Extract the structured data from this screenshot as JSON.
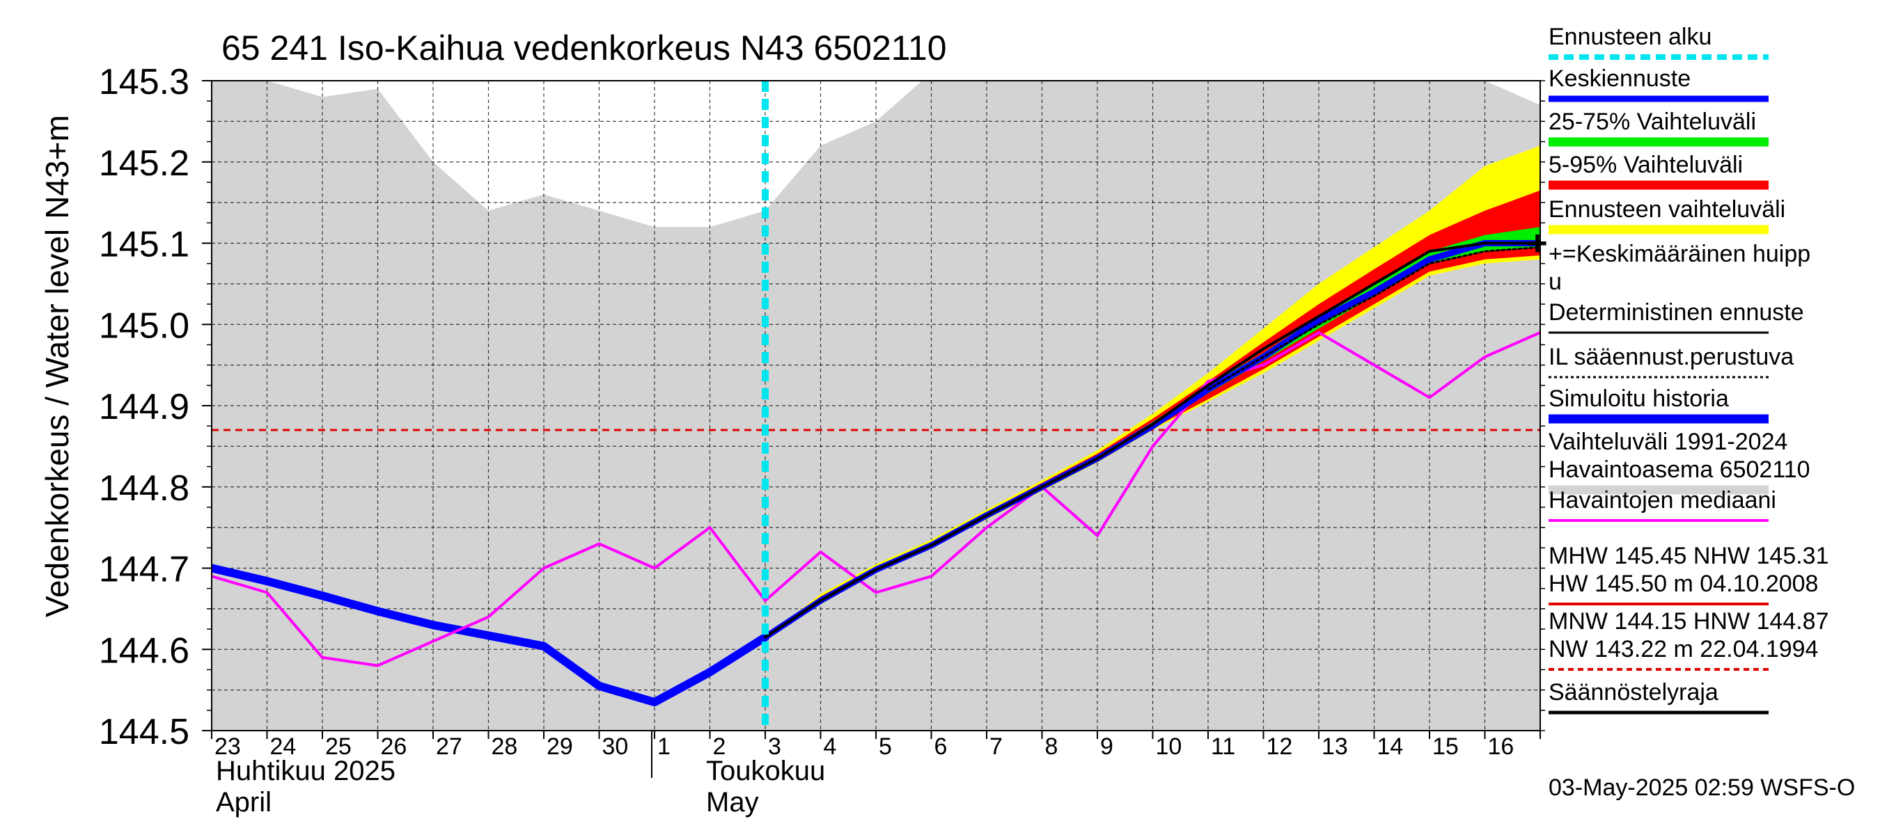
{
  "chart_data": {
    "type": "line",
    "title": "65 241 Iso-Kaihua vedenkorkeus N43 6502110",
    "ylabel": "Vedenkorkeus / Water level   N43+m",
    "ylabel_main": "Vedenkorkeus / Water level",
    "ylabel_unit": "N43+m",
    "ylim": [
      144.5,
      145.3
    ],
    "yticks": [
      "145.3",
      "145.2",
      "145.1",
      "145.0",
      "144.9",
      "144.8",
      "144.7",
      "144.6",
      "144.5"
    ],
    "xlim": [
      "2025-04-23",
      "2025-05-17"
    ],
    "xtick_labels": [
      "23",
      "24",
      "25",
      "26",
      "27",
      "28",
      "29",
      "30",
      "1",
      "2",
      "3",
      "4",
      "5",
      "6",
      "7",
      "8",
      "9",
      "10",
      "11",
      "12",
      "13",
      "14",
      "15",
      "16"
    ],
    "month_labels": [
      {
        "fi": "Huhtikuu  2025",
        "en": "April",
        "start": "2025-04-23"
      },
      {
        "fi": "Toukokuu",
        "en": "May",
        "start": "2025-05-01"
      }
    ],
    "grid": true,
    "legend_position": "right",
    "forecast_start": "2025-05-03",
    "reference_lines": [
      {
        "name": "HNW",
        "value": 144.87,
        "style": "dashed",
        "color": "#e00000"
      }
    ],
    "range_1991_2024": {
      "x": [
        "2025-04-23",
        "2025-04-24",
        "2025-04-25",
        "2025-04-26",
        "2025-04-27",
        "2025-04-28",
        "2025-04-29",
        "2025-04-30",
        "2025-05-01",
        "2025-05-02",
        "2025-05-03",
        "2025-05-04",
        "2025-05-05",
        "2025-05-06",
        "2025-05-07",
        "2025-05-08",
        "2025-05-09",
        "2025-05-10",
        "2025-05-11",
        "2025-05-12",
        "2025-05-13",
        "2025-05-14",
        "2025-05-15",
        "2025-05-16",
        "2025-05-17"
      ],
      "lower": [
        144.5,
        144.5,
        144.5,
        144.5,
        144.5,
        144.5,
        144.5,
        144.5,
        144.5,
        144.5,
        144.5,
        144.5,
        144.5,
        144.5,
        144.5,
        144.5,
        144.5,
        144.5,
        144.5,
        144.5,
        144.5,
        144.5,
        144.5,
        144.5,
        144.5
      ],
      "upper": [
        145.3,
        145.3,
        145.28,
        145.29,
        145.2,
        145.14,
        145.16,
        145.14,
        145.12,
        145.12,
        145.14,
        145.22,
        145.25,
        145.31,
        145.33,
        145.36,
        145.38,
        145.37,
        145.37,
        145.36,
        145.35,
        145.33,
        145.32,
        145.3,
        145.27
      ]
    },
    "series": [
      {
        "name": "Simuloitu historia",
        "color": "#0000ff",
        "x": [
          "2025-04-23",
          "2025-04-24",
          "2025-04-25",
          "2025-04-26",
          "2025-04-27",
          "2025-04-28",
          "2025-04-29",
          "2025-04-30",
          "2025-05-01",
          "2025-05-02",
          "2025-05-03"
        ],
        "values": [
          144.7,
          144.684,
          144.666,
          144.647,
          144.63,
          144.617,
          144.604,
          144.555,
          144.535,
          144.572,
          144.615
        ]
      },
      {
        "name": "Havaintojen mediaani",
        "color": "#ff00ff",
        "x": [
          "2025-04-23",
          "2025-04-24",
          "2025-04-25",
          "2025-04-26",
          "2025-04-27",
          "2025-04-28",
          "2025-04-29",
          "2025-04-30",
          "2025-05-01",
          "2025-05-02",
          "2025-05-03",
          "2025-05-04",
          "2025-05-05",
          "2025-05-06",
          "2025-05-07",
          "2025-05-08",
          "2025-05-09",
          "2025-05-10",
          "2025-05-11",
          "2025-05-12",
          "2025-05-13",
          "2025-05-14",
          "2025-05-15",
          "2025-05-16",
          "2025-05-17"
        ],
        "values": [
          144.69,
          144.67,
          144.59,
          144.58,
          144.61,
          144.64,
          144.7,
          144.73,
          144.7,
          144.75,
          144.66,
          144.72,
          144.67,
          144.69,
          144.75,
          144.8,
          144.74,
          144.85,
          144.93,
          144.95,
          144.99,
          144.95,
          144.91,
          144.96,
          144.99
        ]
      },
      {
        "name": "Keskiennuste",
        "color": "#0000ff",
        "x": [
          "2025-05-03",
          "2025-05-04",
          "2025-05-05",
          "2025-05-06",
          "2025-05-07",
          "2025-05-08",
          "2025-05-09",
          "2025-05-10",
          "2025-05-11",
          "2025-05-12",
          "2025-05-13",
          "2025-05-14",
          "2025-05-15",
          "2025-05-16",
          "2025-05-17"
        ],
        "values": [
          144.615,
          144.66,
          144.698,
          144.728,
          144.765,
          144.8,
          144.835,
          144.875,
          144.92,
          144.96,
          145.005,
          145.04,
          145.08,
          145.1,
          145.1
        ]
      },
      {
        "name": "Deterministinen ennuste",
        "color": "#000000",
        "x": [
          "2025-05-03",
          "2025-05-04",
          "2025-05-05",
          "2025-05-06",
          "2025-05-07",
          "2025-05-08",
          "2025-05-09",
          "2025-05-10",
          "2025-05-11",
          "2025-05-12",
          "2025-05-13",
          "2025-05-14",
          "2025-05-15",
          "2025-05-16",
          "2025-05-17"
        ],
        "values": [
          144.615,
          144.66,
          144.698,
          144.728,
          144.765,
          144.8,
          144.835,
          144.877,
          144.925,
          144.97,
          145.01,
          145.05,
          145.09,
          145.1,
          145.1
        ]
      },
      {
        "name": "IL sääennust.perustuva",
        "color": "#000000",
        "style": "dotted",
        "x": [
          "2025-05-11",
          "2025-05-12",
          "2025-05-13",
          "2025-05-14",
          "2025-05-15",
          "2025-05-16",
          "2025-05-17"
        ],
        "values": [
          144.92,
          144.96,
          145.0,
          145.035,
          145.075,
          145.09,
          145.095
        ]
      }
    ],
    "bands": [
      {
        "name": "Ennusteen vaihteluväli",
        "color": "#ffff00",
        "x": [
          "2025-05-03",
          "2025-05-04",
          "2025-05-05",
          "2025-05-06",
          "2025-05-07",
          "2025-05-08",
          "2025-05-09",
          "2025-05-10",
          "2025-05-11",
          "2025-05-12",
          "2025-05-13",
          "2025-05-14",
          "2025-05-15",
          "2025-05-16",
          "2025-05-17"
        ],
        "lower": [
          144.615,
          144.655,
          144.695,
          144.725,
          144.76,
          144.795,
          144.83,
          144.87,
          144.905,
          144.94,
          144.98,
          145.02,
          145.06,
          145.075,
          145.08
        ],
        "upper": [
          144.615,
          144.668,
          144.705,
          144.735,
          144.772,
          144.808,
          144.845,
          144.89,
          144.94,
          144.995,
          145.05,
          145.095,
          145.14,
          145.195,
          145.22
        ]
      },
      {
        "name": "5-95% Vaihteluväli",
        "color": "#ff0000",
        "x": [
          "2025-05-03",
          "2025-05-04",
          "2025-05-05",
          "2025-05-06",
          "2025-05-07",
          "2025-05-08",
          "2025-05-09",
          "2025-05-10",
          "2025-05-11",
          "2025-05-12",
          "2025-05-13",
          "2025-05-14",
          "2025-05-15",
          "2025-05-16",
          "2025-05-17"
        ],
        "lower": [
          144.615,
          144.657,
          144.696,
          144.726,
          144.762,
          144.797,
          144.832,
          144.872,
          144.908,
          144.945,
          144.985,
          145.025,
          145.065,
          145.08,
          145.085
        ],
        "upper": [
          144.615,
          144.665,
          144.702,
          144.732,
          144.769,
          144.805,
          144.841,
          144.884,
          144.93,
          144.978,
          145.025,
          145.068,
          145.11,
          145.14,
          145.165
        ]
      },
      {
        "name": "25-75% Vaihteluväli",
        "color": "#00ee00",
        "x": [
          "2025-05-03",
          "2025-05-04",
          "2025-05-05",
          "2025-05-06",
          "2025-05-07",
          "2025-05-08",
          "2025-05-09",
          "2025-05-10",
          "2025-05-11",
          "2025-05-12",
          "2025-05-13",
          "2025-05-14",
          "2025-05-15",
          "2025-05-16",
          "2025-05-17"
        ],
        "lower": [
          144.615,
          144.659,
          144.697,
          144.727,
          144.764,
          144.799,
          144.834,
          144.874,
          144.915,
          144.955,
          144.995,
          145.035,
          145.075,
          145.09,
          145.095
        ],
        "upper": [
          144.615,
          144.662,
          144.7,
          144.73,
          144.767,
          144.802,
          144.838,
          144.88,
          144.925,
          144.965,
          145.01,
          145.05,
          145.09,
          145.11,
          145.12
        ]
      }
    ],
    "mean_peak": {
      "x": "2025-05-17",
      "value": 145.1
    },
    "legend": [
      {
        "label": "Ennusteen alku",
        "color": "#00e5ee",
        "style": "dashed"
      },
      {
        "label": "Keskiennuste",
        "color": "#0000ff",
        "style": "solid"
      },
      {
        "label": "25-75% Vaihteluväli",
        "color": "#00ee00",
        "style": "solid"
      },
      {
        "label": "5-95% Vaihteluväli",
        "color": "#ff0000",
        "style": "solid"
      },
      {
        "label": "Ennusteen vaihteluväli",
        "color": "#ffff00",
        "style": "solid"
      },
      {
        "label": "+=Keskimääräinen huipp",
        "label2": "u",
        "color": "#000000",
        "style": "none"
      },
      {
        "label": "Deterministinen ennuste",
        "color": "#000000",
        "style": "solid"
      },
      {
        "label": "IL sääennust.perustuva",
        "color": "#000000",
        "style": "dotted"
      },
      {
        "label": "Simuloitu historia",
        "color": "#0000ff",
        "style": "solid"
      },
      {
        "label": "Vaihteluväli 1991-2024",
        "label2": " Havaintoasema 6502110",
        "color": "#d3d3d3",
        "style": "solid"
      },
      {
        "label": "Havaintojen mediaani",
        "color": "#ff00ff",
        "style": "solid"
      },
      {
        "label": "MHW 145.45 NHW 145.31",
        "label2": "HW 145.50 m 04.10.2008",
        "color": "#e00000",
        "style": "solid"
      },
      {
        "label": "MNW 144.15 HNW 144.87",
        "label2": "NW 143.22 m 22.04.1994",
        "color": "#e00000",
        "style": "dashed"
      },
      {
        "label": "Säännöstelyraja",
        "color": "#000000",
        "style": "solid"
      }
    ],
    "footer": "03-May-2025 02:59 WSFS-O"
  }
}
